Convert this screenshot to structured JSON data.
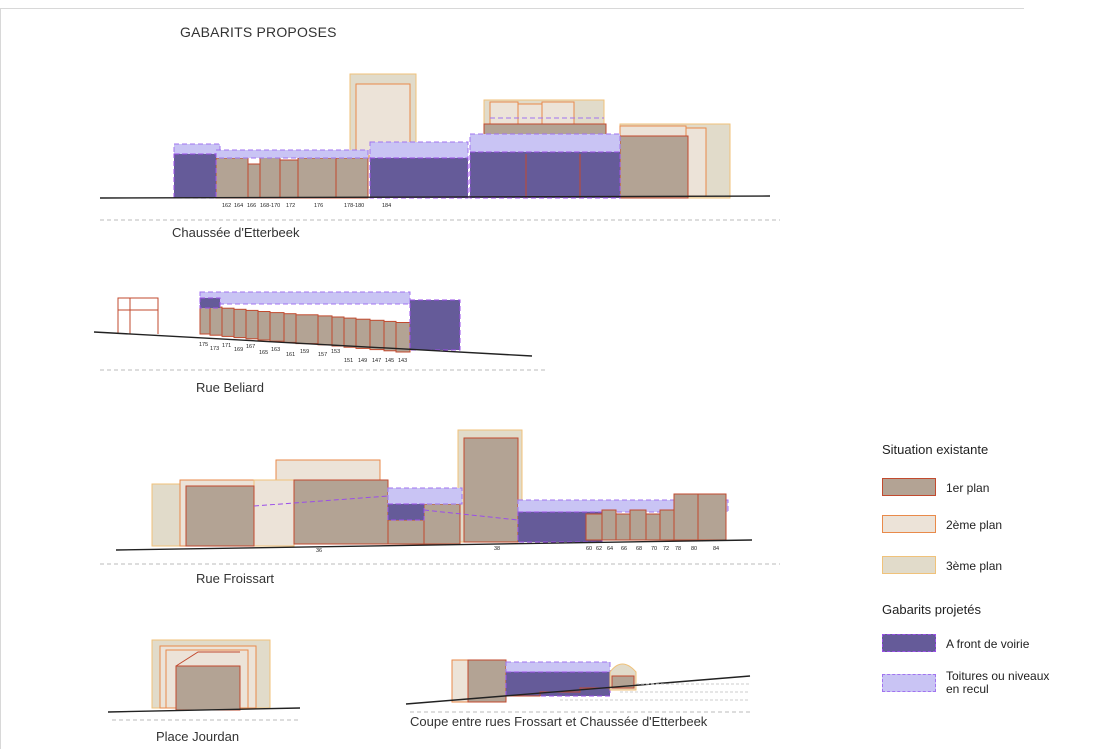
{
  "title": "GABARITS PROPOSES",
  "sections": [
    {
      "name": "Chaussée d'Etterbeek",
      "numbers": [
        "162",
        "164",
        "166",
        "168-170",
        "172",
        "176",
        "178-180",
        "184"
      ]
    },
    {
      "name": "Rue Beliard",
      "numbers": [
        "175",
        "173",
        "171",
        "169",
        "167",
        "165",
        "163",
        "161",
        "159",
        "157",
        "153",
        "151",
        "149",
        "147",
        "145",
        "143"
      ]
    },
    {
      "name": "Rue Froissart",
      "numbers": [
        "36",
        "38",
        "60",
        "62",
        "64",
        "66",
        "68",
        "70",
        "72",
        "78",
        "80",
        "84"
      ]
    },
    {
      "name": "Place Jourdan",
      "numbers": []
    },
    {
      "name": "Coupe entre rues Frossart et Chaussée d'Etterbeek",
      "numbers": []
    }
  ],
  "legend": {
    "existing_title": "Situation existante",
    "existing_items": [
      {
        "label": "1er plan",
        "fill": "#b3a394",
        "stroke": "#c24a2e"
      },
      {
        "label": "2ème plan",
        "fill": "#ece3d8",
        "stroke": "#e98a4a"
      },
      {
        "label": "3ème plan",
        "fill": "#e1dbca",
        "stroke": "#f0c27a"
      }
    ],
    "projected_title": "Gabarits projetés",
    "projected_items": [
      {
        "label": "A front de voirie",
        "fill": "#655b99",
        "stroke": "#9a4ee8"
      },
      {
        "label": "Toitures ou niveaux en recul",
        "fill": "#c9c4f4",
        "stroke": "#a173f0"
      }
    ]
  },
  "colors": {
    "first_plan": "#b3a394",
    "first_plan_stroke": "#c24a2e",
    "second_plan": "#ece3d8",
    "second_plan_stroke": "#e98a4a",
    "third_plan": "#e1dbca",
    "projected_front": "#655b99",
    "projected_front_stroke": "#9a4ee8",
    "projected_roof": "#c9c4f4",
    "ground": "#222222"
  }
}
